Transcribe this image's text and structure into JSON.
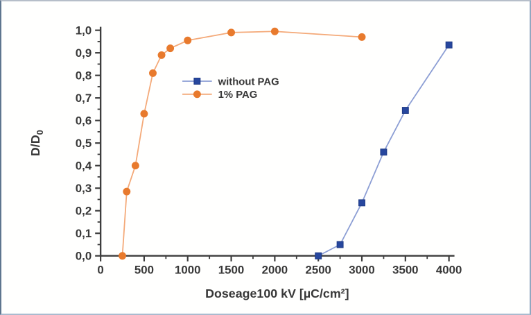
{
  "frame": {
    "background": "#fffffe",
    "border_top": "#b6bec9",
    "border_right": "#92a7c0",
    "border_bottom": "#aabbcf",
    "border_left": "#5e768f"
  },
  "chart_data": {
    "type": "line",
    "title": "",
    "xlabel": "Doseage100 kV [µC/cm²]",
    "ylabel": "D/D",
    "ylabel_subscript": "0",
    "xlim": [
      0,
      4000
    ],
    "ylim": [
      0,
      1.0
    ],
    "grid": false,
    "legend_position": "inside center-left",
    "axis_color": "#3d3d3d",
    "text_color": "#383838",
    "x_ticks": {
      "values": [
        0,
        500,
        1000,
        1500,
        2000,
        2500,
        3000,
        3500,
        4000
      ],
      "labels": [
        "0",
        "500",
        "1000",
        "1500",
        "2000",
        "2500",
        "3000",
        "3500",
        "4000"
      ],
      "minor": [
        250,
        750,
        1250,
        1750,
        2250,
        2750,
        3250,
        3750
      ]
    },
    "y_ticks": {
      "values": [
        0,
        0.1,
        0.2,
        0.3,
        0.4,
        0.5,
        0.6,
        0.7,
        0.8,
        0.9,
        1.0
      ],
      "labels": [
        "0,0",
        "0,1",
        "0,2",
        "0,3",
        "0,4",
        "0,5",
        "0,6",
        "0,7",
        "0,8",
        "0,9",
        "1,0"
      ],
      "minor": [
        0.05,
        0.15,
        0.25,
        0.35,
        0.45,
        0.55,
        0.65,
        0.75,
        0.85,
        0.95
      ]
    },
    "series": [
      {
        "name": "without PAG",
        "marker": "square",
        "marker_color": "#27479e",
        "marker_edge": "#1e3a85",
        "line_color": "#8c9ed4",
        "points": [
          [
            2500,
            0.0
          ],
          [
            2750,
            0.05
          ],
          [
            3000,
            0.235
          ],
          [
            3250,
            0.46
          ],
          [
            3500,
            0.645
          ],
          [
            4000,
            0.935
          ]
        ]
      },
      {
        "name": "1% PAG",
        "marker": "circle",
        "marker_color": "#e87a2d",
        "marker_edge": "#e87a2d",
        "line_color": "#f4a978",
        "points": [
          [
            250,
            0.0
          ],
          [
            300,
            0.285
          ],
          [
            400,
            0.4
          ],
          [
            500,
            0.63
          ],
          [
            600,
            0.81
          ],
          [
            700,
            0.89
          ],
          [
            800,
            0.92
          ],
          [
            1000,
            0.955
          ],
          [
            1500,
            0.99
          ],
          [
            2000,
            0.995
          ],
          [
            3000,
            0.97
          ]
        ]
      }
    ]
  }
}
